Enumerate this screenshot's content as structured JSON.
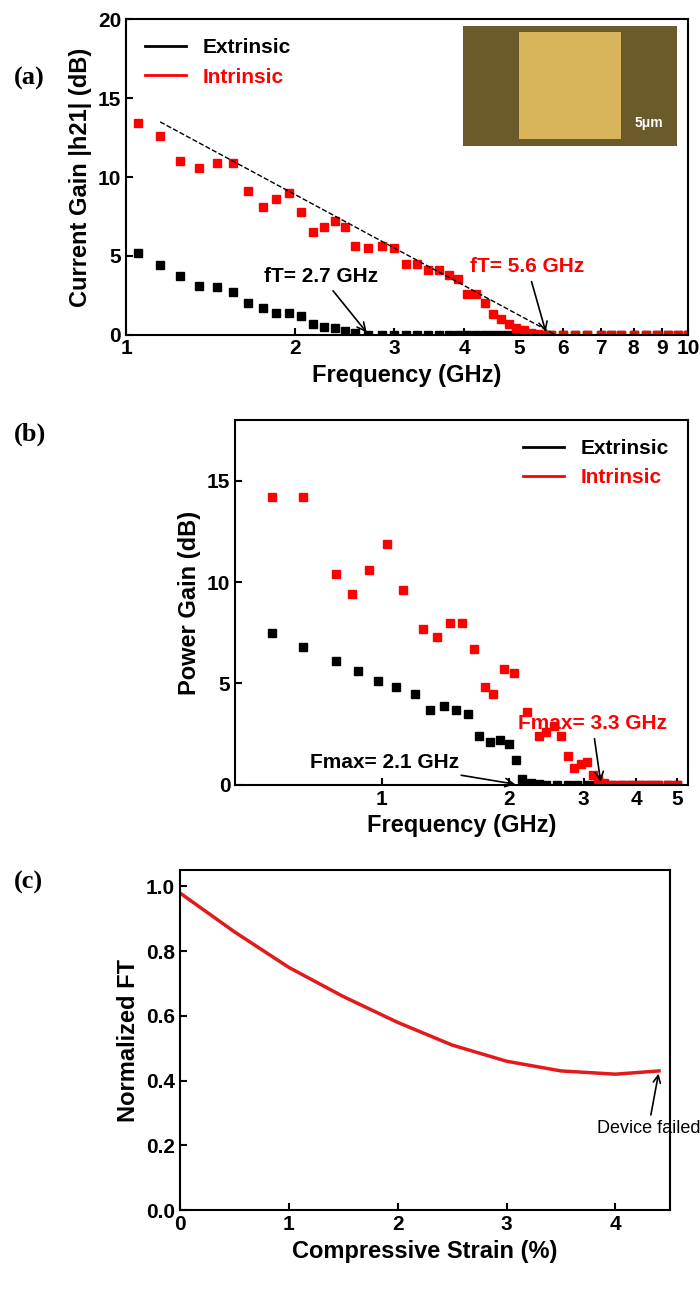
{
  "chart_data": [
    {
      "type": "scatter",
      "panel_label": "(a)",
      "x_label": "Frequency (GHz)",
      "y_label": "Current Gain |h21| (dB)",
      "log": "x",
      "xlim": [
        1,
        10
      ],
      "xticks": [
        1,
        2,
        3,
        4,
        5,
        6,
        7,
        8,
        9,
        10
      ],
      "ylim": [
        0,
        20
      ],
      "yticks": [
        0,
        5,
        10,
        15,
        20
      ],
      "legend": "upper left",
      "inset_text": "5μm",
      "series": [
        {
          "name": "Extrinsic",
          "color": "#000000",
          "marker": "square",
          "x": [
            1.05,
            1.15,
            1.25,
            1.35,
            1.45,
            1.55,
            1.65,
            1.75,
            1.85,
            1.95,
            2.05,
            2.15,
            2.25,
            2.35,
            2.45,
            2.55,
            2.7,
            2.85,
            3.0,
            3.15,
            3.3,
            3.45,
            3.6,
            3.75,
            3.9,
            4.05,
            4.2,
            4.35,
            4.5,
            4.65,
            4.8,
            4.95,
            5.1,
            5.25,
            5.4,
            5.55,
            5.7,
            6.0,
            6.3,
            6.6,
            7.0,
            7.3,
            7.6,
            8.0,
            8.4,
            8.8,
            9.2,
            9.6,
            10.0
          ],
          "values": [
            5.2,
            4.4,
            3.7,
            3.1,
            3.0,
            2.7,
            2.0,
            1.7,
            1.4,
            1.4,
            1.2,
            0.7,
            0.5,
            0.4,
            0.2,
            0.1,
            0,
            0,
            0,
            0,
            0,
            0,
            0,
            0,
            0,
            0,
            0,
            0,
            0,
            0,
            0,
            0,
            0,
            0,
            0,
            0,
            0,
            0,
            0,
            0,
            0,
            0,
            0,
            0,
            0,
            0,
            0,
            0,
            0
          ]
        },
        {
          "name": "Intrinsic",
          "color": "#ff0000",
          "marker": "square",
          "x": [
            1.05,
            1.15,
            1.25,
            1.35,
            1.45,
            1.55,
            1.65,
            1.75,
            1.85,
            1.95,
            2.05,
            2.15,
            2.25,
            2.35,
            2.45,
            2.55,
            2.7,
            2.85,
            3.0,
            3.15,
            3.3,
            3.45,
            3.6,
            3.75,
            3.9,
            4.05,
            4.2,
            4.35,
            4.5,
            4.65,
            4.8,
            4.95,
            5.1,
            5.25,
            5.4,
            5.55,
            5.7,
            6.0,
            6.3,
            6.6,
            7.0,
            7.3,
            7.6,
            8.0,
            8.4,
            8.8,
            9.2,
            9.6,
            10.0
          ],
          "values": [
            13.4,
            12.6,
            11.0,
            10.6,
            10.9,
            10.9,
            9.1,
            8.1,
            8.6,
            9.0,
            7.8,
            6.5,
            6.8,
            7.2,
            6.8,
            5.6,
            5.5,
            5.6,
            5.5,
            4.5,
            4.5,
            4.1,
            4.1,
            3.8,
            3.5,
            2.6,
            2.6,
            2.0,
            1.3,
            1.0,
            0.7,
            0.4,
            0.3,
            0.1,
            0.05,
            0,
            0,
            0,
            0,
            0,
            0,
            0,
            0,
            0,
            0,
            0,
            0,
            0,
            0
          ]
        },
        {
          "type": "line",
          "color": "#000000",
          "line_style": "dashed",
          "x": [
            1.15,
            5.8
          ],
          "values": [
            13.5,
            0
          ]
        }
      ],
      "annotations": [
        {
          "text": "fT= 2.7 GHz",
          "x": 2.7,
          "y": 0,
          "color": "#000000"
        },
        {
          "text": "fT= 5.6 GHz",
          "x": 5.6,
          "y": 0,
          "color": "#ff0000"
        }
      ]
    },
    {
      "type": "scatter",
      "panel_label": "(b)",
      "x_label": "Frequency (GHz)",
      "y_label": "Power Gain (dB)",
      "log": "x",
      "xlim": [
        0.45,
        5.3
      ],
      "xticks": [
        1,
        2,
        3,
        4,
        5
      ],
      "ylim": [
        0,
        18
      ],
      "yticks": [
        0,
        5,
        10,
        15
      ],
      "legend": "upper right",
      "series": [
        {
          "name": "Extrinsic",
          "color": "#000000",
          "marker": "square",
          "x": [
            0.55,
            0.65,
            0.78,
            0.88,
            0.98,
            1.08,
            1.2,
            1.3,
            1.4,
            1.5,
            1.6,
            1.7,
            1.8,
            1.9,
            2.0,
            2.08,
            2.15,
            2.25,
            2.35,
            2.45,
            2.6,
            2.75,
            2.9,
            3.05,
            3.2,
            3.35,
            3.5,
            3.7,
            3.9,
            4.1,
            4.3,
            4.5,
            4.75,
            5.0
          ],
          "values": [
            7.5,
            6.8,
            6.1,
            5.6,
            5.1,
            4.8,
            4.5,
            3.7,
            3.9,
            3.7,
            3.5,
            2.4,
            2.1,
            2.2,
            2.0,
            1.2,
            0.3,
            0.1,
            0.05,
            0,
            0,
            0,
            0,
            0,
            0,
            0,
            0,
            0,
            0,
            0,
            0,
            0,
            0,
            0
          ]
        },
        {
          "name": "Intrinsic",
          "color": "#ff0000",
          "marker": "square",
          "x": [
            0.55,
            0.65,
            0.78,
            0.85,
            0.93,
            1.03,
            1.12,
            1.25,
            1.35,
            1.45,
            1.55,
            1.65,
            1.75,
            1.83,
            1.95,
            2.05,
            2.2,
            2.35,
            2.45,
            2.55,
            2.65,
            2.75,
            2.85,
            2.95,
            3.05,
            3.15,
            3.25,
            3.35,
            3.45,
            3.6,
            3.75,
            3.9,
            4.1,
            4.3,
            4.5,
            4.75,
            5.0
          ],
          "values": [
            14.2,
            14.2,
            10.4,
            9.4,
            10.6,
            11.9,
            9.6,
            7.7,
            7.3,
            8.0,
            8.0,
            6.7,
            4.8,
            4.5,
            5.7,
            5.5,
            3.6,
            2.4,
            2.6,
            2.9,
            2.4,
            1.4,
            0.8,
            1.0,
            1.1,
            0.5,
            0.3,
            0.1,
            0,
            0,
            0,
            0,
            0,
            0,
            0,
            0,
            0
          ]
        }
      ],
      "annotations": [
        {
          "text": "Fmax= 2.1 GHz",
          "x": 2.1,
          "y": 0,
          "color": "#000000"
        },
        {
          "text": "Fmax= 3.3 GHz",
          "x": 3.3,
          "y": 0,
          "color": "#ff0000"
        }
      ]
    },
    {
      "type": "line",
      "panel_label": "(c)",
      "x_label": "Compressive Strain (%)",
      "y_label": "Normalized FT",
      "xlim": [
        0,
        4.5
      ],
      "xticks": [
        0,
        1,
        2,
        3,
        4
      ],
      "ylim": [
        0,
        1.05
      ],
      "yticks": [
        0.0,
        0.2,
        0.4,
        0.6,
        0.8,
        1.0
      ],
      "series": [
        {
          "color": "#e31a1c",
          "x": [
            0,
            0.5,
            1.0,
            1.5,
            2.0,
            2.5,
            3.0,
            3.5,
            4.0,
            4.4
          ],
          "values": [
            0.98,
            0.86,
            0.75,
            0.66,
            0.58,
            0.51,
            0.46,
            0.43,
            0.42,
            0.43
          ]
        }
      ],
      "annotations": [
        {
          "text": "Device failed",
          "x": 4.4,
          "y": 0.43,
          "color": "#000000"
        }
      ]
    }
  ]
}
